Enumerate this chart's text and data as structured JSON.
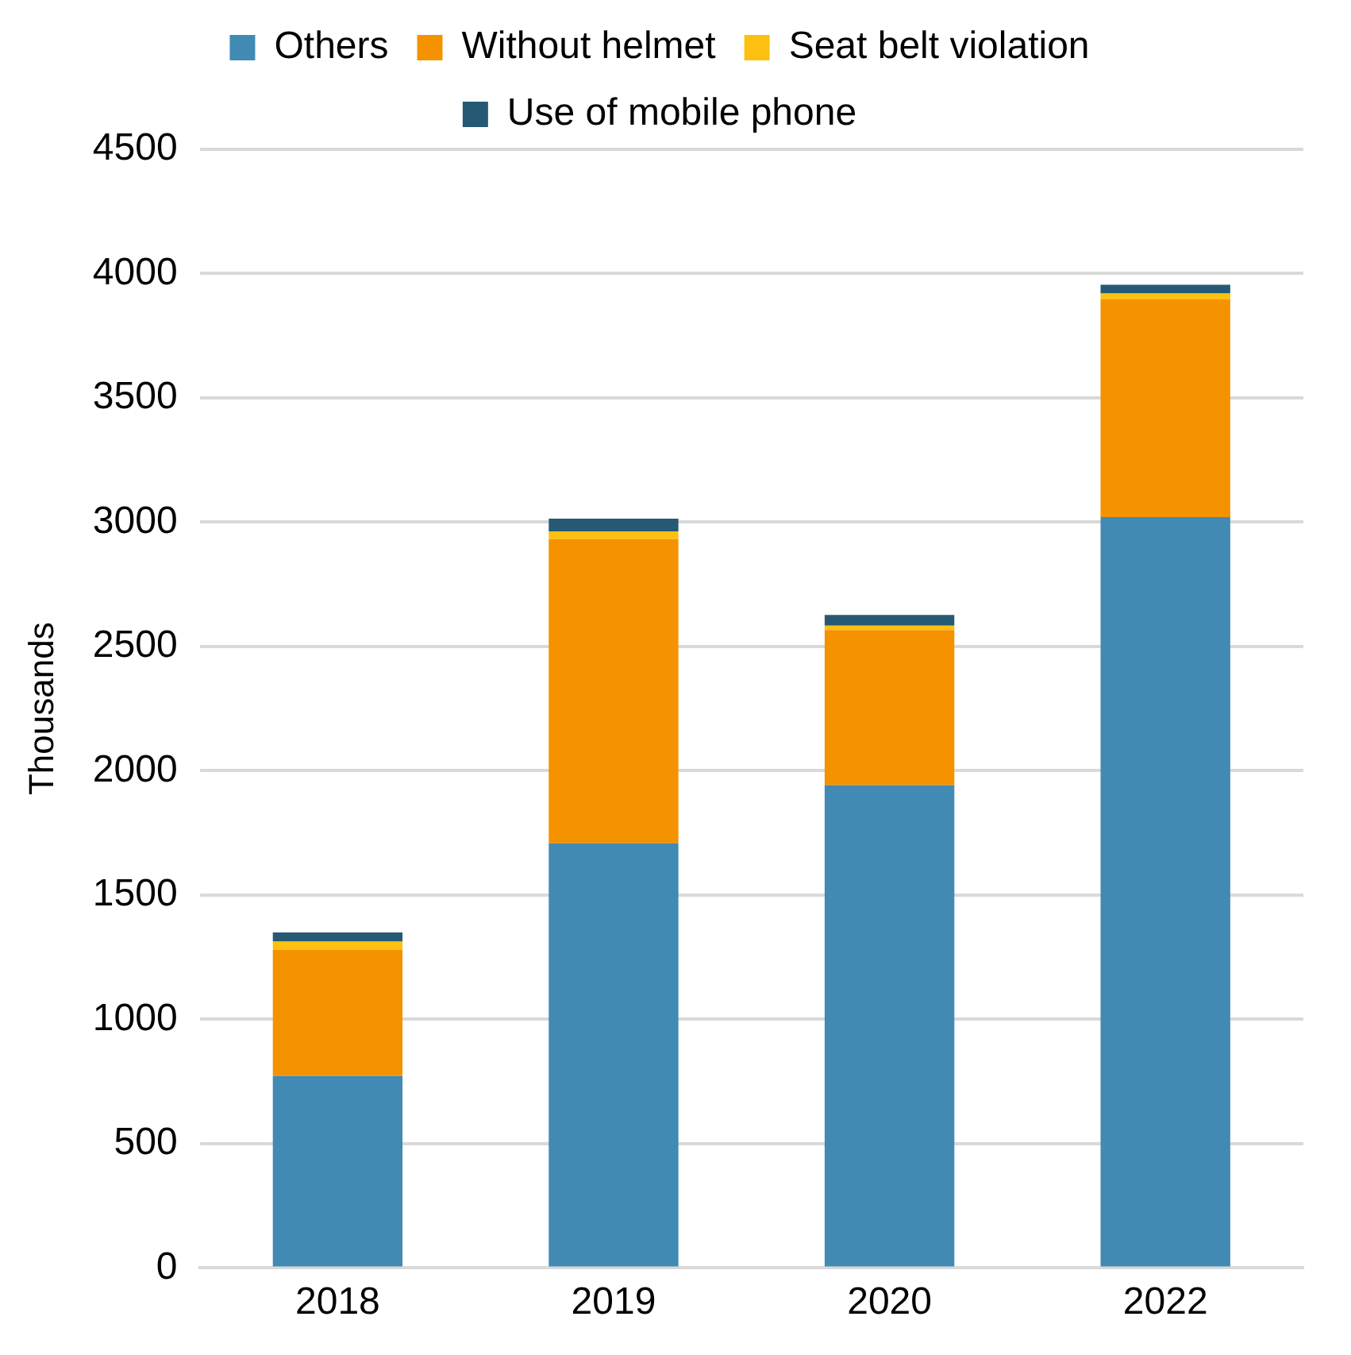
{
  "chart_data": {
    "type": "bar",
    "stacked": true,
    "ylabel": "Thousands",
    "categories": [
      "2018",
      "2019",
      "2020",
      "2022"
    ],
    "series": [
      {
        "name": "Others",
        "color": "#418ab3",
        "values": [
          772,
          1708,
          1942,
          3021
        ]
      },
      {
        "name": "Without helmet",
        "color": "#f59200",
        "values": [
          508,
          1224,
          624,
          875
        ]
      },
      {
        "name": "Seat belt violation",
        "color": "#fdc010",
        "values": [
          33,
          31,
          18,
          24
        ]
      },
      {
        "name": "Use of mobile phone",
        "color": "#265a74",
        "values": [
          37,
          51,
          43,
          35
        ]
      }
    ],
    "ylim": [
      0,
      4500
    ],
    "yticks": [
      0,
      500,
      1000,
      1500,
      2000,
      2500,
      3000,
      3500,
      4000,
      4500
    ],
    "grid": "y",
    "legend": "top"
  }
}
